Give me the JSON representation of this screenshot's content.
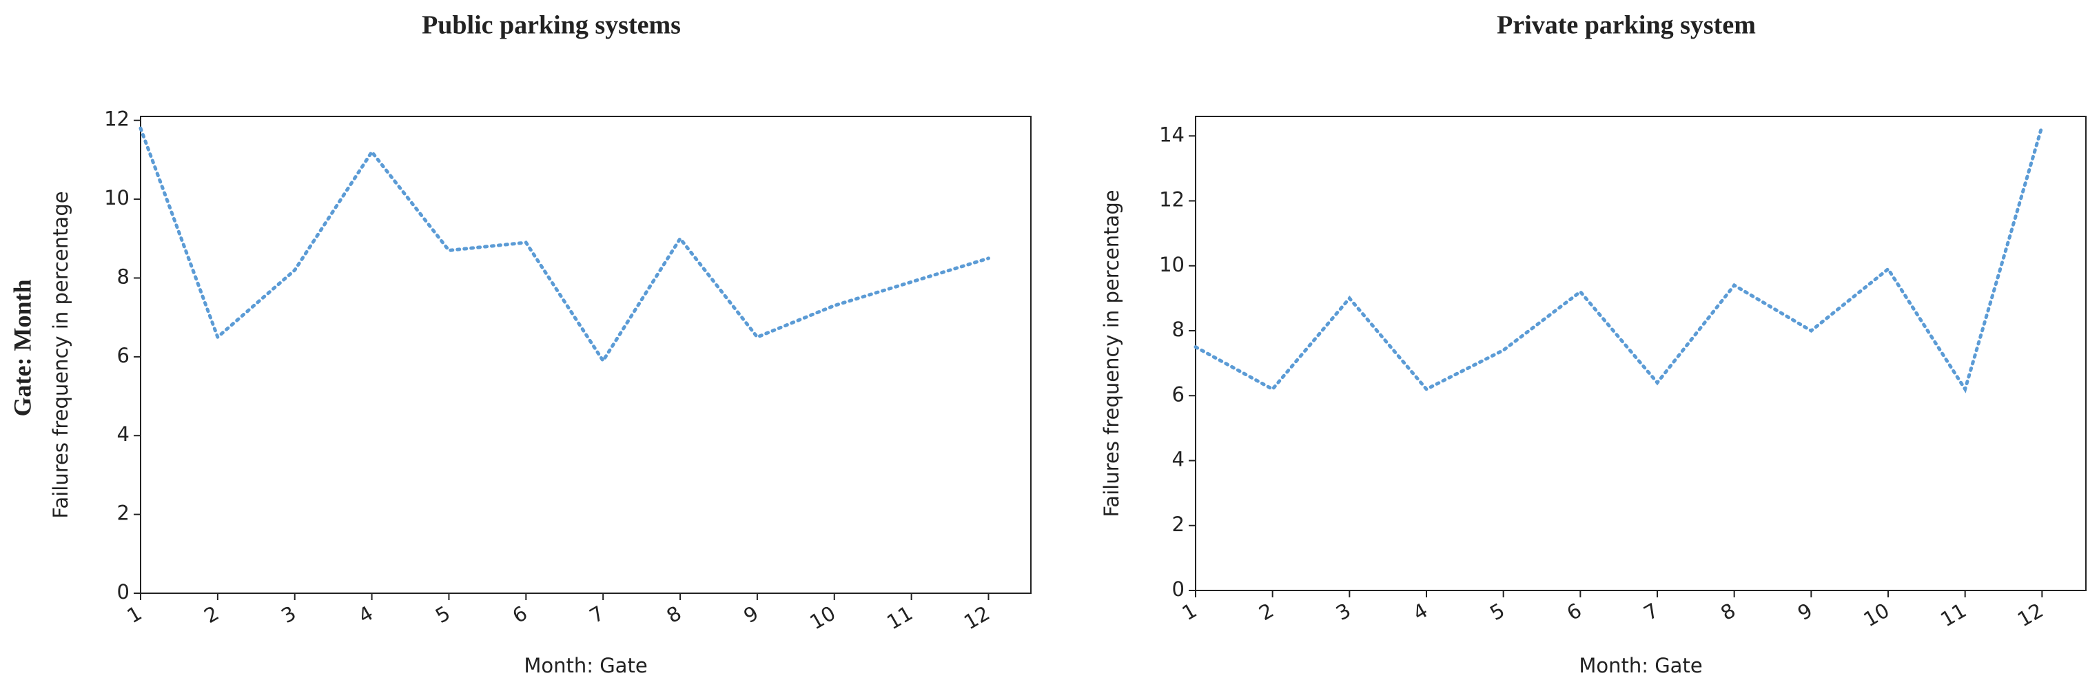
{
  "chart_data": [
    {
      "type": "line",
      "title": "Public parking systems",
      "x_label": "Month: Gate",
      "y_label": "Failures frequency in percentage",
      "annotation": "Gate: Month",
      "x": [
        1,
        2,
        3,
        4,
        5,
        6,
        7,
        8,
        9,
        10,
        11,
        12
      ],
      "series": [
        {
          "color": "#5b9bd5",
          "values": [
            11.8,
            6.5,
            8.2,
            11.2,
            8.7,
            8.9,
            5.9,
            9.0,
            6.5,
            7.3,
            7.9,
            8.5
          ]
        }
      ],
      "xlim": [
        1,
        12.55
      ],
      "xticks": [
        1,
        2,
        3,
        4,
        5,
        6,
        7,
        8,
        9,
        10,
        11,
        12
      ],
      "ylim": [
        0,
        12.1
      ],
      "yticks": [
        0,
        2,
        4,
        6,
        8,
        10,
        12
      ],
      "grid": false
    },
    {
      "type": "line",
      "title": "Private parking system",
      "x_label": "Month: Gate",
      "y_label": "Failures frequency in percentage",
      "x": [
        1,
        2,
        3,
        4,
        5,
        6,
        7,
        8,
        9,
        10,
        11,
        12
      ],
      "series": [
        {
          "color": "#5b9bd5",
          "values": [
            7.5,
            6.2,
            9.0,
            6.2,
            7.4,
            9.2,
            6.4,
            9.4,
            8.0,
            9.9,
            6.2,
            14.3
          ]
        }
      ],
      "xlim": [
        1,
        12.57
      ],
      "xticks": [
        1,
        2,
        3,
        4,
        5,
        6,
        7,
        8,
        9,
        10,
        11,
        12
      ],
      "ylim": [
        0,
        14.6
      ],
      "yticks": [
        0,
        2,
        4,
        6,
        8,
        10,
        12,
        14
      ],
      "grid": false
    }
  ]
}
